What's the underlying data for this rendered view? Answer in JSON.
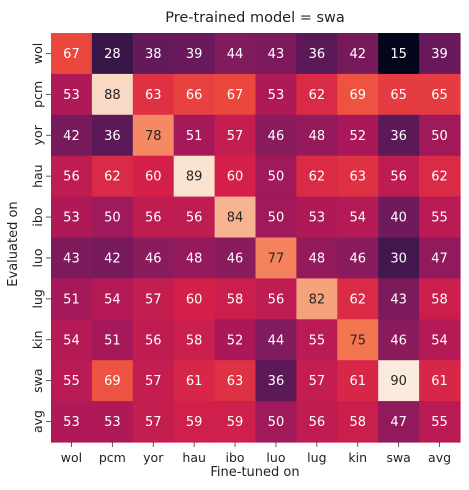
{
  "chart_data": {
    "type": "heatmap",
    "title": "Pre-trained model = swa",
    "xlabel": "Fine-tuned on",
    "ylabel": "Evaluated on",
    "x_categories": [
      "wol",
      "pcm",
      "yor",
      "hau",
      "ibo",
      "luo",
      "lug",
      "kin",
      "swa",
      "avg"
    ],
    "y_categories": [
      "wol",
      "pcm",
      "yor",
      "hau",
      "ibo",
      "luo",
      "lug",
      "kin",
      "swa",
      "avg"
    ],
    "values": [
      [
        67,
        28,
        38,
        39,
        44,
        43,
        36,
        42,
        15,
        39
      ],
      [
        53,
        88,
        63,
        66,
        67,
        53,
        62,
        69,
        65,
        65
      ],
      [
        42,
        36,
        78,
        51,
        57,
        46,
        48,
        52,
        36,
        50
      ],
      [
        56,
        62,
        60,
        89,
        60,
        50,
        62,
        63,
        56,
        62
      ],
      [
        53,
        50,
        56,
        56,
        84,
        50,
        53,
        54,
        40,
        55
      ],
      [
        43,
        42,
        46,
        48,
        46,
        77,
        48,
        46,
        30,
        47
      ],
      [
        51,
        54,
        57,
        60,
        58,
        56,
        82,
        62,
        43,
        58
      ],
      [
        54,
        51,
        56,
        58,
        52,
        44,
        55,
        75,
        46,
        54
      ],
      [
        55,
        69,
        57,
        61,
        63,
        36,
        57,
        61,
        90,
        61
      ],
      [
        53,
        53,
        57,
        59,
        59,
        50,
        56,
        58,
        47,
        55
      ]
    ],
    "value_range": [
      15,
      90
    ],
    "colormap": "rocket",
    "colorbar": false,
    "grid": false
  }
}
